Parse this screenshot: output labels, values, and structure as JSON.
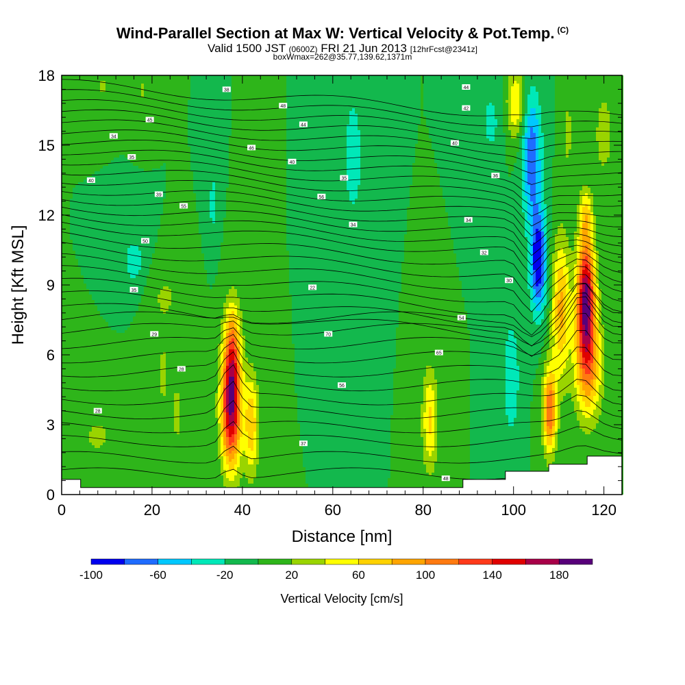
{
  "header": {
    "title": "Wind-Parallel Section at Max W: Vertical Velocity & Pot.Temp.",
    "title_mark": "(C)",
    "valid_prefix": "Valid 1500 JST",
    "valid_utc": "(0600Z)",
    "valid_date": "FRI 21 Jun 2013",
    "forecast": "[12hrFcst@2341z]",
    "box_info": "boxWmax=262@35.77,139.62,1371m"
  },
  "chart_data": {
    "type": "heatmap",
    "xlabel": "Distance [nm]",
    "ylabel": "Height [Kft MSL]",
    "xlim": [
      0,
      124
    ],
    "ylim": [
      0,
      18
    ],
    "x_ticks": [
      0,
      20,
      40,
      60,
      80,
      100,
      120
    ],
    "y_ticks": [
      0,
      3,
      6,
      9,
      12,
      15,
      18
    ],
    "colorbar": {
      "label": "Vertical Velocity [cm/s]",
      "range": [
        -100,
        200
      ],
      "step": 20,
      "tick_labels": [
        "-100",
        "-60",
        "-20",
        "20",
        "60",
        "100",
        "140",
        "180"
      ],
      "tick_values": [
        -100,
        -60,
        -20,
        20,
        60,
        100,
        140,
        180
      ],
      "colors": [
        "#0000ee",
        "#1f6cff",
        "#00c8ff",
        "#00e8b8",
        "#13b84d",
        "#2eb51a",
        "#9ad400",
        "#ffff00",
        "#ffd200",
        "#ffa500",
        "#ff7a10",
        "#ff3a1a",
        "#e00000",
        "#a80048",
        "#58007a"
      ]
    },
    "background_w": 0,
    "features": [
      {
        "x": 37.5,
        "y": 3.8,
        "w": 180,
        "rx": 2.2,
        "ry": 2.6
      },
      {
        "x": 37.8,
        "y": 6.5,
        "w": 70,
        "rx": 1.8,
        "ry": 2.0
      },
      {
        "x": 42.0,
        "y": 3.0,
        "w": 75,
        "rx": 1.6,
        "ry": 2.2
      },
      {
        "x": 81.5,
        "y": 3.2,
        "w": 65,
        "rx": 1.7,
        "ry": 2.2
      },
      {
        "x": 25.5,
        "y": 3.5,
        "w": 25,
        "rx": 1.4,
        "ry": 2.0
      },
      {
        "x": 22.5,
        "y": 5.2,
        "w": 25,
        "rx": 1.4,
        "ry": 2.0
      },
      {
        "x": 105.5,
        "y": 10.0,
        "w": -100,
        "rx": 1.8,
        "ry": 2.2
      },
      {
        "x": 104.0,
        "y": 14.5,
        "w": -75,
        "rx": 2.2,
        "ry": 2.8
      },
      {
        "x": 100.5,
        "y": 16.8,
        "w": 60,
        "rx": 2.0,
        "ry": 1.6
      },
      {
        "x": 108.0,
        "y": 3.6,
        "w": 120,
        "rx": 1.5,
        "ry": 1.8
      },
      {
        "x": 110.5,
        "y": 8.0,
        "w": 85,
        "rx": 2.0,
        "ry": 3.0
      },
      {
        "x": 116.0,
        "y": 8.5,
        "w": 180,
        "rx": 2.0,
        "ry": 2.5
      },
      {
        "x": 116.5,
        "y": 5.5,
        "w": 95,
        "rx": 3.0,
        "ry": 2.3
      },
      {
        "x": 116.0,
        "y": 12.0,
        "w": 55,
        "rx": 1.5,
        "ry": 1.2
      },
      {
        "x": 99.5,
        "y": 5.0,
        "w": -40,
        "rx": 1.8,
        "ry": 2.5
      },
      {
        "x": 95.0,
        "y": 16.0,
        "w": -25,
        "rx": 2.5,
        "ry": 1.8
      },
      {
        "x": 64.5,
        "y": 14.5,
        "w": -30,
        "rx": 2.5,
        "ry": 3.2
      },
      {
        "x": 33.5,
        "y": 12.5,
        "w": -28,
        "rx": 1.0,
        "ry": 1.6
      },
      {
        "x": 16.0,
        "y": 10.0,
        "w": -30,
        "rx": 2.5,
        "ry": 1.2
      },
      {
        "x": 9.0,
        "y": 17.5,
        "w": 22,
        "rx": 2.5,
        "ry": 0.8
      },
      {
        "x": 18.0,
        "y": 17.3,
        "w": 22,
        "rx": 1.5,
        "ry": 1.0
      },
      {
        "x": 23.0,
        "y": 8.5,
        "w": 22,
        "rx": 4.0,
        "ry": 1.2
      },
      {
        "x": 8.0,
        "y": 2.5,
        "w": 22,
        "rx": 6.0,
        "ry": 1.5
      },
      {
        "x": 120.0,
        "y": 15.5,
        "w": 35,
        "rx": 2.0,
        "ry": 1.8
      },
      {
        "x": 112.0,
        "y": 15.5,
        "w": 25,
        "rx": 1.5,
        "ry": 2.0
      }
    ],
    "contour_labels": [
      {
        "text": "40",
        "x": 6.5,
        "y": 13.5
      },
      {
        "text": "34",
        "x": 11.5,
        "y": 15.4
      },
      {
        "text": "35",
        "x": 15.5,
        "y": 14.5
      },
      {
        "text": "45",
        "x": 19.5,
        "y": 16.1
      },
      {
        "text": "38",
        "x": 36.5,
        "y": 17.4
      },
      {
        "text": "48",
        "x": 49.0,
        "y": 16.7
      },
      {
        "text": "44",
        "x": 53.5,
        "y": 15.9
      },
      {
        "text": "46",
        "x": 42.0,
        "y": 14.9
      },
      {
        "text": "40",
        "x": 51.0,
        "y": 14.3
      },
      {
        "text": "35",
        "x": 62.5,
        "y": 13.6
      },
      {
        "text": "44",
        "x": 89.5,
        "y": 17.5
      },
      {
        "text": "42",
        "x": 89.5,
        "y": 16.6
      },
      {
        "text": "40",
        "x": 87.0,
        "y": 15.1
      },
      {
        "text": "36",
        "x": 96.0,
        "y": 13.7
      },
      {
        "text": "39",
        "x": 21.5,
        "y": 12.9
      },
      {
        "text": "55",
        "x": 27.0,
        "y": 12.4
      },
      {
        "text": "56",
        "x": 57.5,
        "y": 12.8
      },
      {
        "text": "34",
        "x": 64.5,
        "y": 11.6
      },
      {
        "text": "34",
        "x": 90.0,
        "y": 11.8
      },
      {
        "text": "50",
        "x": 18.5,
        "y": 10.9
      },
      {
        "text": "32",
        "x": 93.5,
        "y": 10.4
      },
      {
        "text": "35",
        "x": 16.0,
        "y": 8.8
      },
      {
        "text": "22",
        "x": 55.5,
        "y": 8.9
      },
      {
        "text": "30",
        "x": 99.0,
        "y": 9.2
      },
      {
        "text": "29",
        "x": 20.5,
        "y": 6.9
      },
      {
        "text": "70",
        "x": 59.0,
        "y": 6.9
      },
      {
        "text": "54",
        "x": 88.5,
        "y": 7.6
      },
      {
        "text": "28",
        "x": 26.5,
        "y": 5.4
      },
      {
        "text": "65",
        "x": 83.5,
        "y": 6.1
      },
      {
        "text": "56",
        "x": 62.0,
        "y": 4.7
      },
      {
        "text": "28",
        "x": 8.0,
        "y": 3.6
      },
      {
        "text": "37",
        "x": 53.5,
        "y": 2.2
      },
      {
        "text": "48",
        "x": 85.0,
        "y": 0.7
      }
    ],
    "terrain": [
      [
        0,
        0.65
      ],
      [
        4.2,
        0.65
      ],
      [
        4.2,
        0.3
      ],
      [
        88.8,
        0.3
      ],
      [
        88.8,
        0.65
      ],
      [
        98.2,
        0.65
      ],
      [
        98.2,
        1.0
      ],
      [
        107.8,
        1.0
      ],
      [
        107.8,
        1.3
      ],
      [
        116.3,
        1.3
      ],
      [
        116.3,
        1.65
      ],
      [
        124,
        1.65
      ]
    ]
  }
}
